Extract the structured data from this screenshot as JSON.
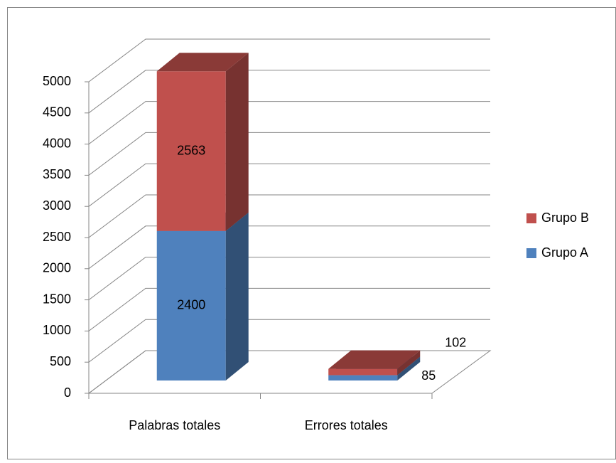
{
  "chart_data": {
    "type": "bar3d_stacked",
    "categories": [
      "Palabras totales",
      "Errores totales"
    ],
    "series": [
      {
        "name": "Grupo A",
        "color": "#4f81bd",
        "values": [
          2400,
          85
        ]
      },
      {
        "name": "Grupo B",
        "color": "#c0504d",
        "values": [
          2563,
          102
        ]
      }
    ],
    "ylim": [
      0,
      5000
    ],
    "yticks": [
      0,
      500,
      1000,
      1500,
      2000,
      2500,
      3000,
      3500,
      4000,
      4500,
      5000
    ],
    "grid": true,
    "legend": "right",
    "data_labels": true
  }
}
